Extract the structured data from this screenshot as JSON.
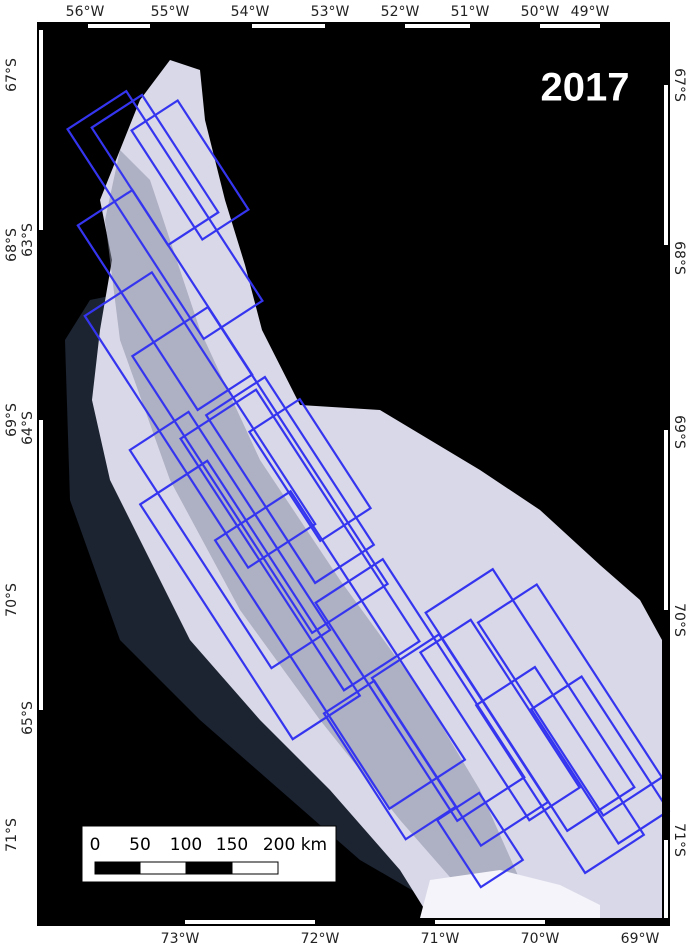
{
  "map": {
    "year_label": "2017",
    "top_longitude_labels": [
      "56°W",
      "55°W",
      "54°W",
      "53°W",
      "52°W",
      "51°W",
      "50°W",
      "49°W"
    ],
    "bottom_longitude_labels": [
      "73°W",
      "72°W",
      "71°W",
      "70°W",
      "69°W"
    ],
    "left_latitude_labels": [
      "67°S",
      "68°S",
      "69°S",
      "70°S",
      "71°S"
    ],
    "left_inner_latitude_labels": [
      "63°S",
      "64°S",
      "65°S"
    ],
    "right_latitude_labels": [
      "67°S",
      "68°S",
      "69°S",
      "70°S",
      "71°S"
    ],
    "scale_bar": {
      "labels": [
        "0",
        "50",
        "100",
        "150",
        "200 km"
      ]
    }
  }
}
